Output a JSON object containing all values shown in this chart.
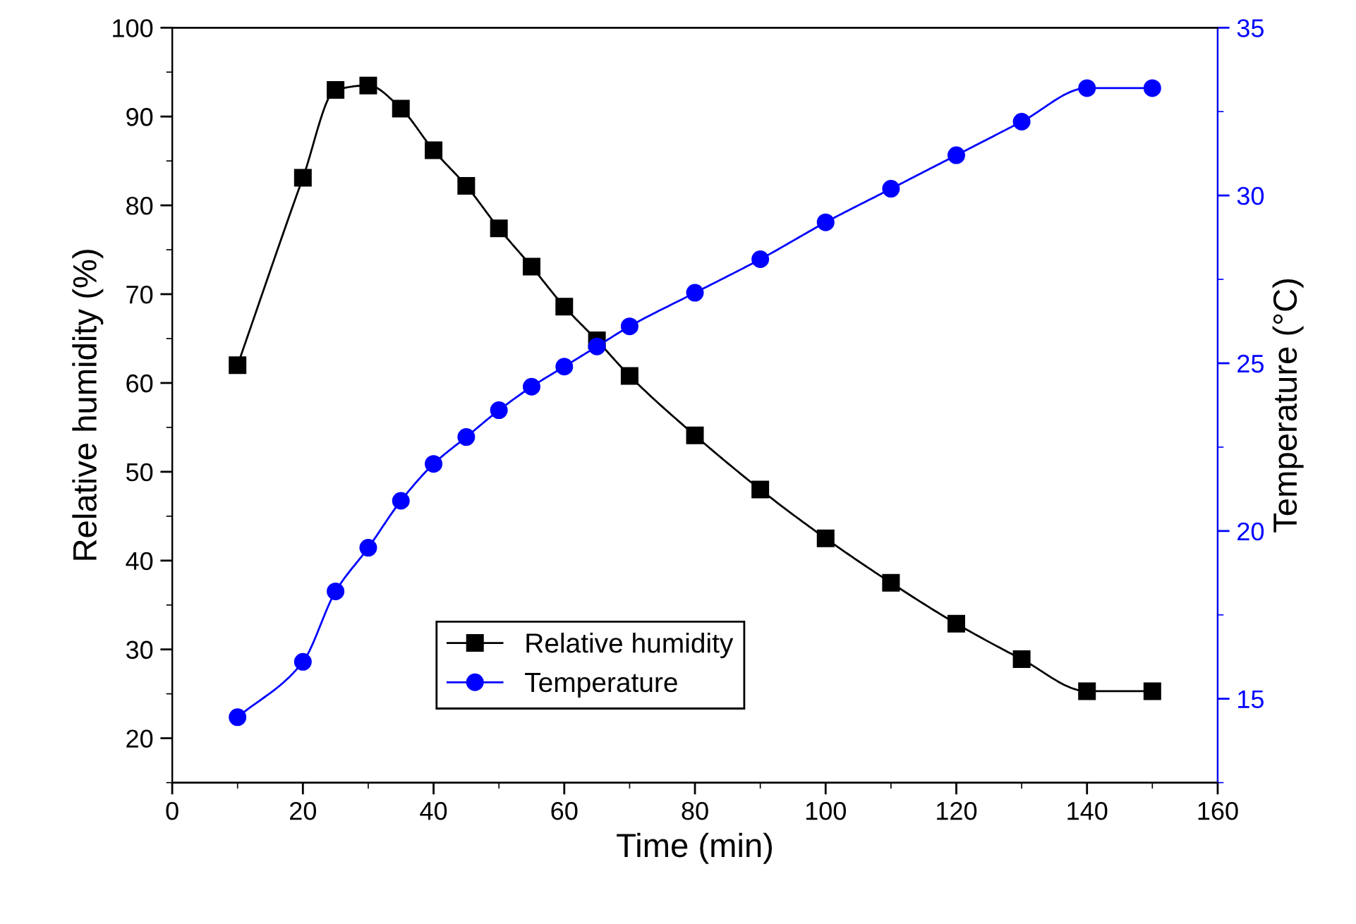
{
  "chart_data": {
    "type": "line",
    "xlabel": "Time (min)",
    "ylabel": "Relative humidity (%)",
    "y2label": "Temperature (°C)",
    "x": [
      10,
      20,
      25,
      30,
      35,
      40,
      45,
      50,
      55,
      60,
      65,
      70,
      80,
      90,
      100,
      110,
      120,
      130,
      140,
      150
    ],
    "series": [
      {
        "name": "Relative humidity",
        "color": "#000000",
        "marker": "square",
        "values": [
          62,
          83.1,
          93,
          93.5,
          90.9,
          86.2,
          82.2,
          77.4,
          73.1,
          68.6,
          64.8,
          60.8,
          54.1,
          48,
          42.5,
          37.5,
          32.9,
          28.9,
          25.3,
          25.3
        ]
      },
      {
        "name": "Temperature",
        "color": "#0000ff",
        "marker": "circle",
        "axis": "y2",
        "values": [
          14.45,
          16.1,
          18.2,
          19.5,
          20.9,
          22.0,
          22.8,
          23.6,
          24.3,
          24.9,
          25.5,
          26.1,
          27.1,
          28.1,
          29.2,
          30.2,
          31.2,
          32.2,
          33.2,
          33.2
        ]
      }
    ],
    "xlim": [
      0,
      160
    ],
    "xticks": [
      0,
      20,
      40,
      60,
      80,
      100,
      120,
      140,
      160
    ],
    "ylim": [
      15,
      100
    ],
    "yticks": [
      20,
      30,
      40,
      50,
      60,
      70,
      80,
      90,
      100
    ],
    "y2lim": [
      12.5,
      35
    ],
    "y2ticks": [
      15,
      20,
      25,
      30,
      35
    ],
    "grid": false,
    "legend": "bottom",
    "line_style": "solid"
  }
}
